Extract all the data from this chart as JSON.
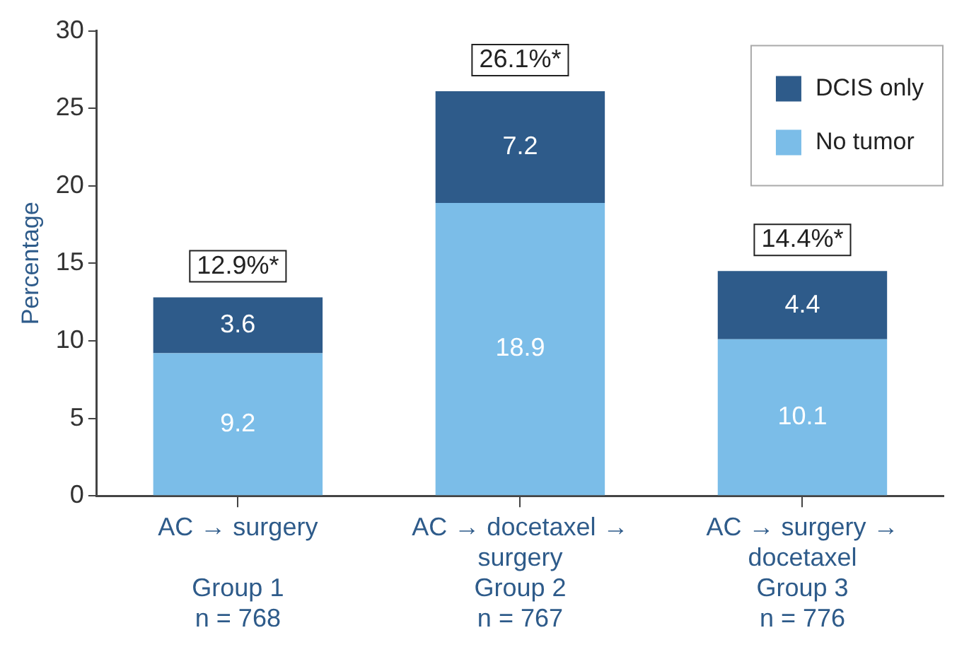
{
  "chart_data": {
    "type": "bar",
    "stacked": true,
    "ylabel": "Percentage",
    "categories": [
      "AC → surgery\n\nGroup 1\nn = 768",
      "AC → docetaxel →\nsurgery\nGroup 2\nn = 767",
      "AC → surgery →\ndocetaxel\nGroup 3\nn = 776"
    ],
    "series": [
      {
        "name": "No tumor",
        "color": "#7bbde8",
        "values": [
          9.2,
          18.9,
          10.1
        ]
      },
      {
        "name": "DCIS only",
        "color": "#2e5b8a",
        "values": [
          3.6,
          7.2,
          4.4
        ]
      }
    ],
    "totals": [
      "12.9%*",
      "26.1%*",
      "14.4%*"
    ],
    "data_labels": true,
    "ylim": [
      0,
      30
    ],
    "yticks": [
      0,
      5,
      10,
      15,
      20,
      25,
      30
    ],
    "grid": false,
    "legend": "top right"
  }
}
